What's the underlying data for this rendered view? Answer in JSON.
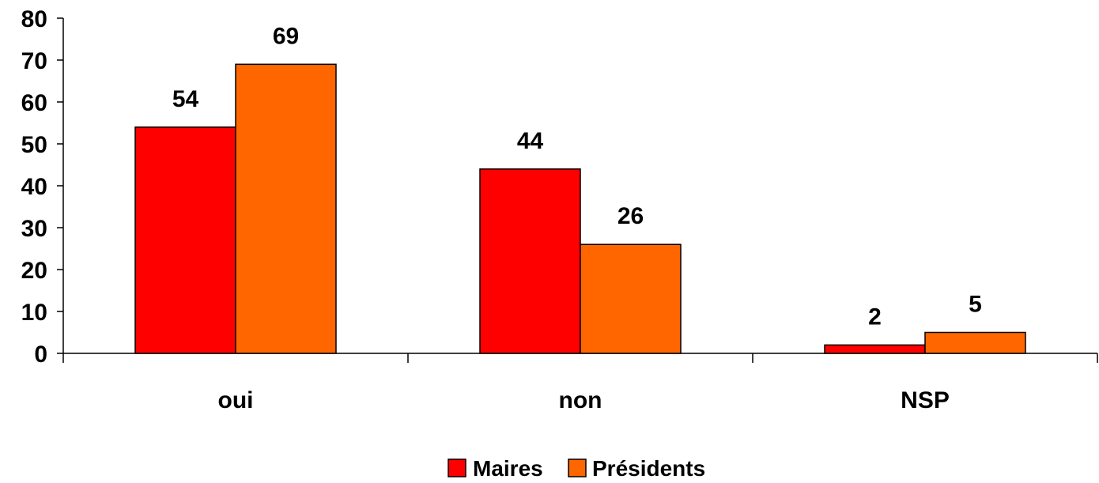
{
  "chart_data": {
    "type": "bar",
    "title": "",
    "xlabel": "",
    "ylabel": "",
    "categories": [
      "oui",
      "non",
      "NSP"
    ],
    "series": [
      {
        "name": "Maires",
        "values": [
          54,
          44,
          2
        ],
        "color": "#ff0000"
      },
      {
        "name": "Présidents",
        "values": [
          69,
          26,
          5
        ],
        "color": "#ff6600"
      }
    ],
    "ylim": [
      0,
      80
    ],
    "yticks": [
      0,
      10,
      20,
      30,
      40,
      50,
      60,
      70,
      80
    ],
    "grid": false,
    "legend": "bottom-center",
    "data_labels": true
  }
}
